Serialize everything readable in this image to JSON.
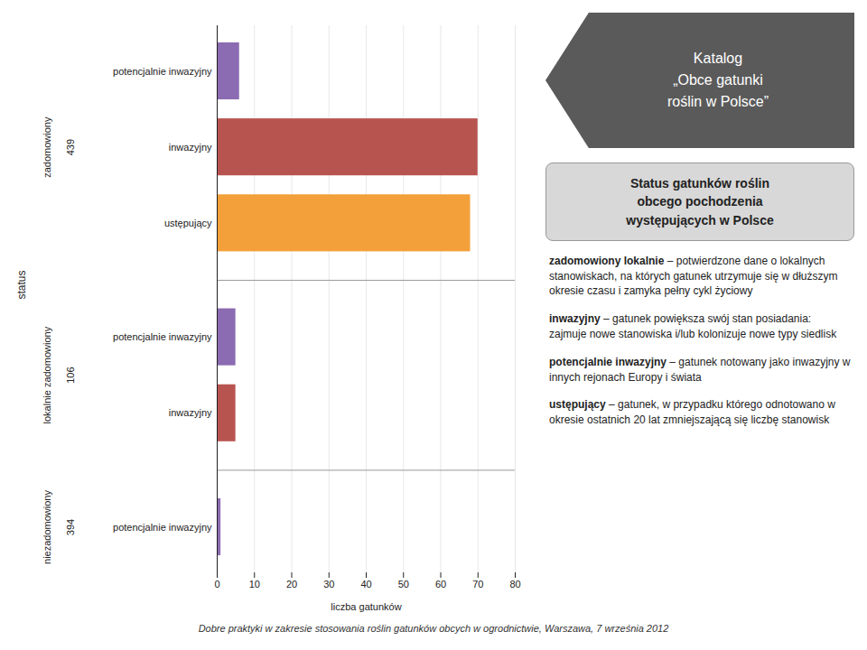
{
  "chart_data": {
    "type": "bar",
    "orientation": "horizontal",
    "title": "Katalog\n„Obce gatunki\nroślin w Polsce”",
    "subtitle": "Status gatunków roślin\nobcego pochodzenia\nwystępujących w Polsce",
    "categories": [
      "potencjalnie inwazyjny",
      "inwazyjny",
      "ustępujący",
      "potencjalnie inwazyjny",
      "inwazyjny",
      "potencjalnie inwazyjny"
    ],
    "values": [
      6,
      70,
      68,
      5,
      5,
      1
    ],
    "colors": [
      "#8B6BB1",
      "#B85450",
      "#F4A03A",
      "#8B6BB1",
      "#B85450",
      "#8B6BB1"
    ],
    "bar_groups": [
      "zadomowiony",
      "zadomowiony",
      "zadomowiony",
      "lokalnie zadomowiony",
      "lokalnie zadomowiony",
      "niezadomowiony"
    ],
    "groups": [
      {
        "name": "zadomowiony",
        "total": 439
      },
      {
        "name": "lokalnie zadomowiony",
        "total": 106
      },
      {
        "name": "niezadomowiony",
        "total": 394
      }
    ],
    "xlabel": "liczba gatunków",
    "ylabel": "status",
    "xlim": [
      0,
      80
    ],
    "xticks": [
      0,
      10,
      20,
      30,
      40,
      50,
      60,
      70,
      80
    ],
    "grid": true,
    "annotations": [
      {
        "bold": "zadomowiony lokalnie",
        "text": " – potwierdzone dane o lokalnych stanowiskach, na których gatunek utrzymuje się w dłuższym okresie czasu i zamyka pełny cykl życiowy"
      },
      {
        "bold": "inwazyjny",
        "text": " – gatunek powiększa swój stan posiadania: zajmuje nowe stanowiska i/lub kolonizuje nowe typy siedlisk"
      },
      {
        "bold": "potencjalnie inwazyjny",
        "text": " – gatunek notowany jako inwazyjny w innych rejonach Europy i świata"
      },
      {
        "bold": "ustępujący",
        "text": " – gatunek, w przypadku którego odnotowano w okresie ostatnich 20 lat zmniejszającą się liczbę stanowisk"
      }
    ],
    "caption": "Dobre praktyki w zakresie stosowania roślin gatunków obcych w ogrodnictwie, Warszawa, 7 września 2012"
  }
}
